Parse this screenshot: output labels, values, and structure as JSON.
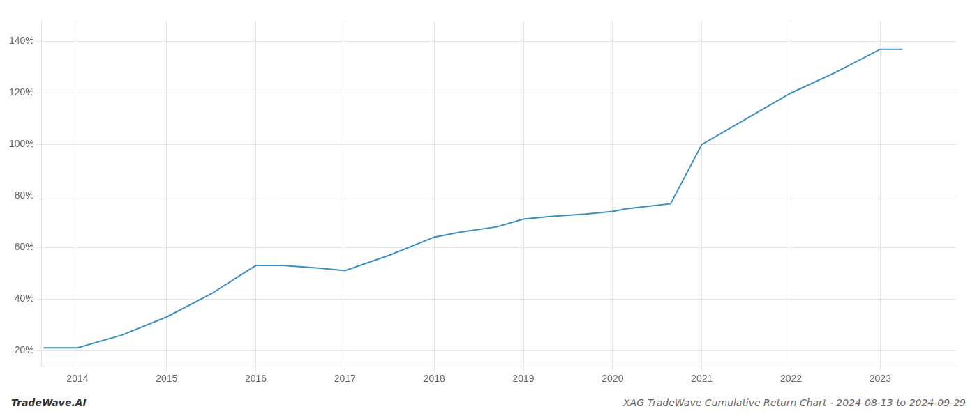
{
  "chart_data": {
    "type": "line",
    "title": "XAG TradeWave Cumulative Return Chart - 2024-08-13 to 2024-09-29",
    "annotations": [
      "TradeWave.AI"
    ],
    "x": [
      2013.62,
      2014.0,
      2014.5,
      2015.0,
      2015.5,
      2016.0,
      2016.3,
      2016.7,
      2017.0,
      2017.5,
      2018.0,
      2018.3,
      2018.7,
      2019.0,
      2019.3,
      2019.7,
      2020.0,
      2020.15,
      2020.65,
      2021.0,
      2021.5,
      2022.0,
      2022.5,
      2023.0,
      2023.25
    ],
    "values": [
      21,
      21,
      26,
      33,
      42,
      53,
      53,
      52,
      51,
      57,
      64,
      66,
      68,
      71,
      72,
      73,
      74,
      75,
      77,
      100,
      110,
      120,
      128,
      137,
      137
    ],
    "color": "#3a8fc4",
    "xlim": [
      2013.6,
      2023.85
    ],
    "xticks": [
      2014,
      2015,
      2016,
      2017,
      2018,
      2019,
      2020,
      2021,
      2022,
      2023
    ],
    "ylim": [
      14,
      148
    ],
    "yticks": [
      {
        "value": 20,
        "label": "20%"
      },
      {
        "value": 40,
        "label": "40%"
      },
      {
        "value": 60,
        "label": "60%"
      },
      {
        "value": 80,
        "label": "80%"
      },
      {
        "value": 100,
        "label": "100%"
      },
      {
        "value": 120,
        "label": "120%"
      },
      {
        "value": 140,
        "label": "140%"
      }
    ],
    "grid": true
  }
}
